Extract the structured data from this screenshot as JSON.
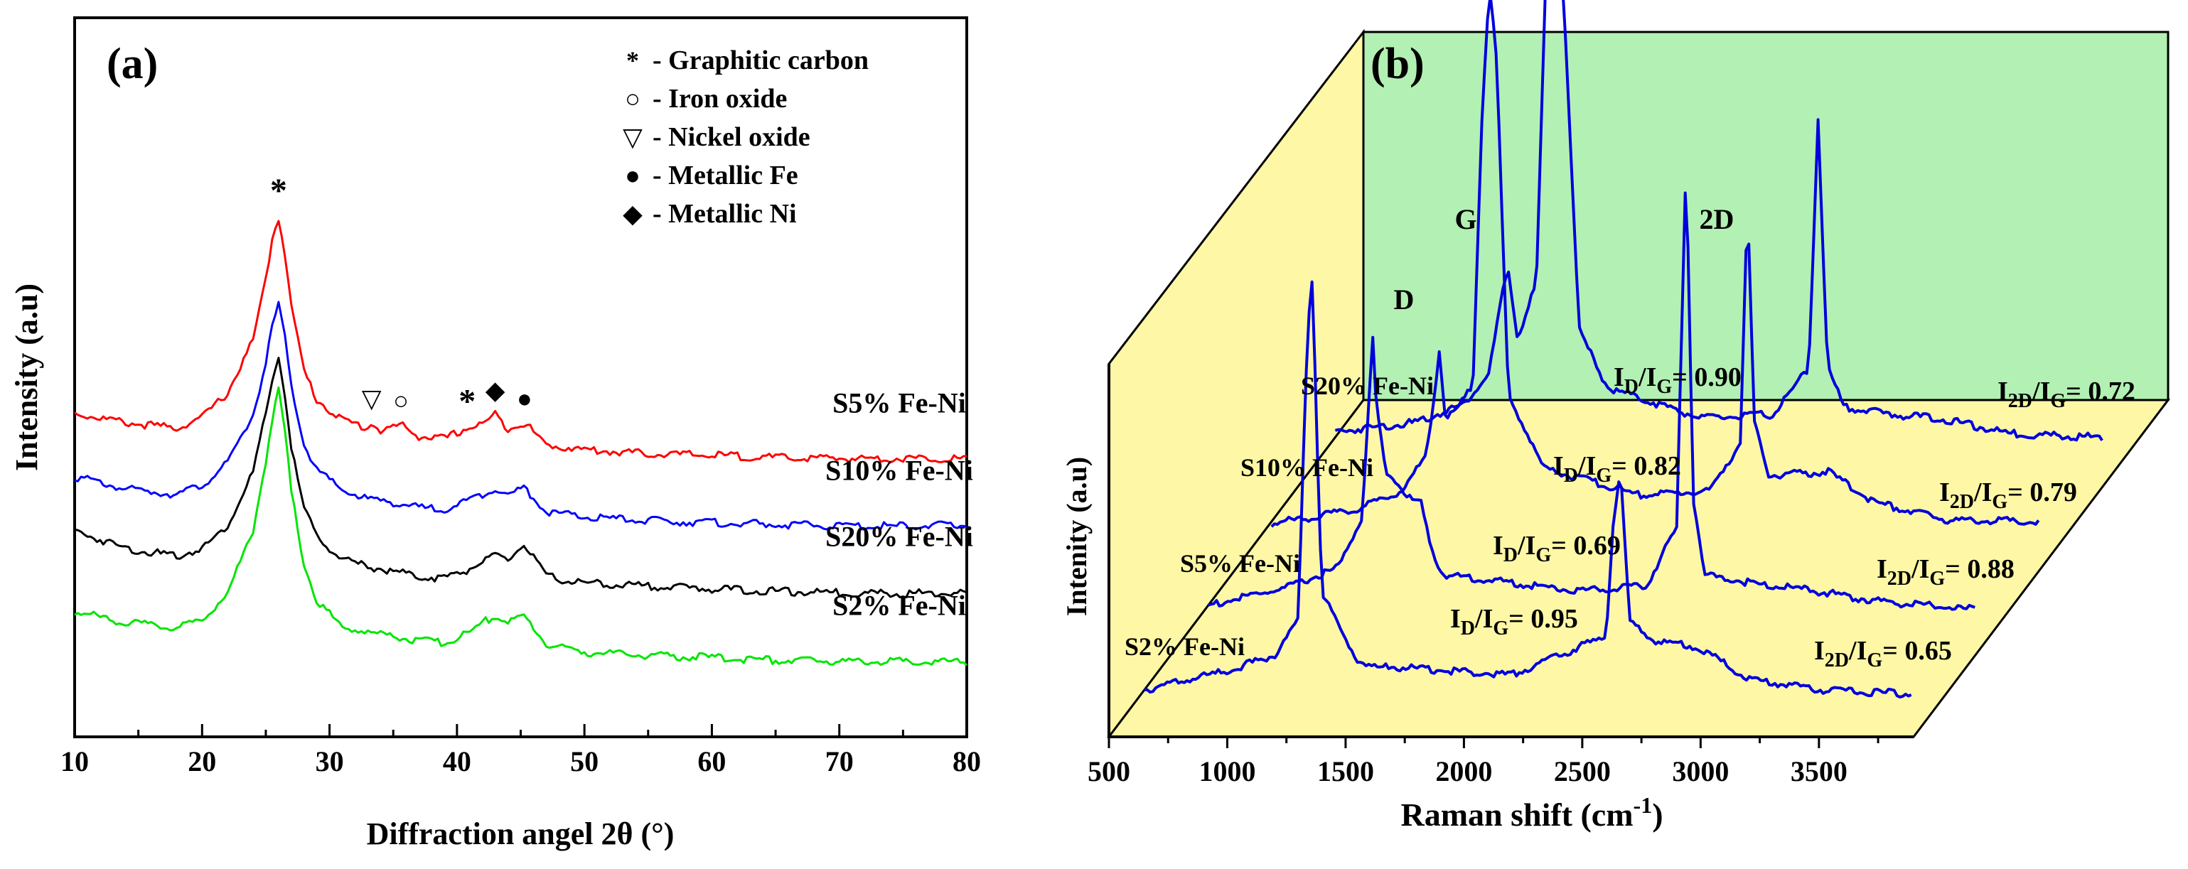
{
  "chart_data": [
    {
      "panel": "(a)",
      "type": "line",
      "title": "",
      "xlabel": "Diffraction angel 2θ (°)",
      "ylabel": "Intensity (a.u)",
      "xlim": [
        10,
        80
      ],
      "xticks": [
        10,
        20,
        30,
        40,
        50,
        60,
        70,
        80
      ],
      "y_tick_labels": "none",
      "legend": {
        "placement": "top-right",
        "entries": [
          {
            "symbol": "*",
            "label": "- Graphitic carbon"
          },
          {
            "symbol": "○",
            "label": "- Iron oxide"
          },
          {
            "symbol": "▽",
            "label": "- Nickel oxide"
          },
          {
            "symbol": "●",
            "label": "- Metallic Fe"
          },
          {
            "symbol": "◆",
            "label": "- Metallic Ni"
          }
        ]
      },
      "peak_markers": [
        {
          "symbol": "*",
          "x": 26.0
        },
        {
          "symbol": "▽",
          "x": 33.3
        },
        {
          "symbol": "○",
          "x": 35.6
        },
        {
          "symbol": "*",
          "x": 40.8
        },
        {
          "symbol": "◆",
          "x": 43.0
        },
        {
          "symbol": "●",
          "x": 45.3
        }
      ],
      "series": [
        {
          "name": "S5% Fe-Ni",
          "label": "S5% Fe-Ni",
          "color": "#ff0000",
          "offset": 3.0,
          "x": [
            10,
            14,
            18,
            20,
            22,
            24,
            25,
            25.5,
            26,
            26.5,
            27,
            28,
            29,
            31,
            33,
            33.3,
            34,
            35.6,
            37,
            39,
            40.8,
            42,
            43,
            44,
            45.3,
            47,
            50,
            55,
            60,
            65,
            70,
            75,
            80
          ],
          "y": [
            0.72,
            0.58,
            0.5,
            0.66,
            1.02,
            1.8,
            2.7,
            3.3,
            3.62,
            3.1,
            2.3,
            1.35,
            0.92,
            0.62,
            0.5,
            0.58,
            0.46,
            0.55,
            0.38,
            0.34,
            0.5,
            0.56,
            0.7,
            0.5,
            0.58,
            0.25,
            0.18,
            0.12,
            0.1,
            0.06,
            0.05,
            0.05,
            0.05
          ]
        },
        {
          "name": "S10% Fe-Ni",
          "label": "S10% Fe-Ni",
          "color": "#0000ff",
          "offset": 2.0,
          "x": [
            10,
            14,
            18,
            20,
            22,
            24,
            25,
            25.5,
            26,
            26.5,
            27,
            28,
            29,
            31,
            33,
            35,
            37,
            39,
            40.8,
            42,
            43,
            44,
            45.3,
            47,
            50,
            55,
            60,
            65,
            70,
            75,
            80
          ],
          "y": [
            0.78,
            0.6,
            0.52,
            0.65,
            0.98,
            1.7,
            2.45,
            3.0,
            3.32,
            2.85,
            2.1,
            1.25,
            0.88,
            0.58,
            0.45,
            0.4,
            0.32,
            0.3,
            0.42,
            0.52,
            0.62,
            0.5,
            0.62,
            0.26,
            0.18,
            0.13,
            0.1,
            0.07,
            0.05,
            0.05,
            0.06
          ]
        },
        {
          "name": "S20% Fe-Ni",
          "label": "S20% Fe-Ni",
          "color": "#000000",
          "offset": 1.0,
          "x": [
            10,
            14,
            18,
            20,
            22,
            24,
            25,
            25.5,
            26,
            26.5,
            27,
            28,
            29,
            31,
            33,
            35,
            37,
            39,
            40.8,
            42,
            43,
            44,
            45.3,
            47,
            50,
            55,
            60,
            65,
            70,
            75,
            80
          ],
          "y": [
            0.98,
            0.72,
            0.6,
            0.72,
            1.05,
            1.85,
            2.7,
            3.2,
            3.55,
            3.0,
            2.2,
            1.3,
            0.9,
            0.55,
            0.45,
            0.38,
            0.3,
            0.28,
            0.4,
            0.52,
            0.6,
            0.55,
            0.78,
            0.3,
            0.2,
            0.16,
            0.12,
            0.08,
            0.06,
            0.05,
            0.06
          ]
        },
        {
          "name": "S2% Fe-Ni",
          "label": "S2% Fe-Ni",
          "color": "#00e600",
          "offset": 0.0,
          "x": [
            10,
            14,
            18,
            20,
            22,
            24,
            25,
            25.5,
            26,
            26.5,
            27,
            28,
            29,
            31,
            33,
            35,
            37,
            39,
            40.8,
            42,
            43,
            44,
            45.3,
            47,
            50,
            55,
            60,
            65,
            70,
            75,
            80
          ],
          "y": [
            0.78,
            0.62,
            0.54,
            0.66,
            1.05,
            2.0,
            3.0,
            3.65,
            4.05,
            3.45,
            2.55,
            1.48,
            0.95,
            0.55,
            0.48,
            0.42,
            0.35,
            0.32,
            0.45,
            0.62,
            0.72,
            0.62,
            0.72,
            0.3,
            0.18,
            0.13,
            0.1,
            0.06,
            0.05,
            0.04,
            0.04
          ]
        }
      ]
    },
    {
      "panel": "(b)",
      "type": "line",
      "subtype": "3d-waterfall",
      "title": "",
      "xlabel": "Raman shift (cm",
      "xlabel_sup": "-1",
      "xlabel_close": ")",
      "ylabel": "Intenity (a.u)",
      "xlim": [
        500,
        3900
      ],
      "xticks": [
        500,
        1000,
        1500,
        2000,
        2500,
        3000,
        3500
      ],
      "band_labels": [
        "D",
        "G",
        "2D"
      ],
      "series": [
        {
          "name": "S20% Fe-Ni",
          "label": "S20% Fe-Ni",
          "color": "#0000dd",
          "depth": 3,
          "ratio_dg": {
            "pre": "I",
            "sub1": "D",
            "mid": "/I",
            "sub2": "G",
            "post": "= 0.90"
          },
          "ratio_2dg": {
            "pre": "I",
            "sub1": "2D",
            "mid": "/I",
            "sub2": "G",
            "post": "= 0.72"
          },
          "x": [
            500,
            1000,
            1200,
            1300,
            1350,
            1380,
            1420,
            1500,
            1540,
            1580,
            1620,
            1680,
            1800,
            2200,
            2500,
            2650,
            2690,
            2730,
            2800,
            3000,
            3200,
            3500,
            3900
          ],
          "y": [
            0.05,
            0.12,
            0.22,
            0.38,
            0.75,
            0.92,
            0.55,
            0.85,
            2.45,
            3.05,
            2.2,
            0.6,
            0.3,
            0.14,
            0.16,
            0.4,
            1.7,
            0.4,
            0.2,
            0.16,
            0.14,
            0.06,
            0.04
          ]
        },
        {
          "name": "S10% Fe-Ni",
          "label": "S10% Fe-Ni",
          "color": "#0000dd",
          "depth": 2,
          "ratio_dg": {
            "pre": "I",
            "sub1": "D",
            "mid": "/I",
            "sub2": "G",
            "post": "= 0.82"
          },
          "ratio_2dg": {
            "pre": "I",
            "sub1": "2D",
            "mid": "/I",
            "sub2": "G",
            "post": "= 0.79"
          },
          "x": [
            500,
            1000,
            1200,
            1300,
            1340,
            1360,
            1380,
            1420,
            1500,
            1540,
            1570,
            1600,
            1650,
            1800,
            2200,
            2500,
            2630,
            2660,
            2690,
            2750,
            3000,
            3200,
            3500,
            3900
          ],
          "y": [
            0.0,
            0.1,
            0.2,
            0.38,
            0.72,
            0.95,
            0.6,
            0.6,
            0.75,
            2.2,
            2.85,
            2.45,
            0.7,
            0.32,
            0.18,
            0.2,
            0.45,
            1.7,
            0.55,
            0.28,
            0.3,
            0.14,
            0.05,
            0.04
          ]
        },
        {
          "name": "S5% Fe-Ni",
          "label": "S5% Fe-Ni",
          "color": "#0000dd",
          "depth": 1,
          "ratio_dg": {
            "pre": "I",
            "sub1": "D",
            "mid": "/I",
            "sub2": "G",
            "post": "= 0.69"
          },
          "ratio_2dg": {
            "pre": "I",
            "sub1": "2D",
            "mid": "/I",
            "sub2": "G",
            "post": "= 0.88"
          },
          "x": [
            500,
            1000,
            1200,
            1300,
            1330,
            1345,
            1360,
            1400,
            1500,
            1550,
            1580,
            1610,
            1650,
            1800,
            2200,
            2500,
            2630,
            2670,
            2700,
            2750,
            3000,
            3200,
            3500,
            3900
          ],
          "y": [
            0.0,
            0.14,
            0.24,
            0.5,
            1.1,
            1.45,
            1.1,
            0.75,
            0.6,
            0.58,
            0.4,
            0.28,
            0.2,
            0.18,
            0.12,
            0.14,
            0.45,
            2.4,
            0.6,
            0.2,
            0.15,
            0.12,
            0.06,
            0.02
          ]
        },
        {
          "name": "S2% Fe-Ni",
          "label": "S2% Fe-Ni",
          "color": "#0000dd",
          "depth": 0,
          "ratio_dg": {
            "pre": "I",
            "sub1": "D",
            "mid": "/I",
            "sub2": "G",
            "post": "= 0.95"
          },
          "ratio_2dg": {
            "pre": "I",
            "sub1": "2D",
            "mid": "/I",
            "sub2": "G",
            "post": "= 0.65"
          },
          "x": [
            500,
            1000,
            1200,
            1300,
            1320,
            1340,
            1360,
            1380,
            1400,
            1500,
            1550,
            1580,
            1620,
            1700,
            2200,
            2600,
            2630,
            2660,
            2700,
            2800,
            3000,
            3200,
            3500,
            3900
          ],
          "y": [
            0.0,
            0.14,
            0.22,
            0.4,
            1.2,
            1.95,
            2.2,
            1.3,
            0.55,
            0.3,
            0.2,
            0.18,
            0.16,
            0.16,
            0.12,
            0.32,
            0.9,
            1.2,
            0.4,
            0.3,
            0.26,
            0.1,
            0.04,
            0.02
          ]
        }
      ]
    }
  ]
}
